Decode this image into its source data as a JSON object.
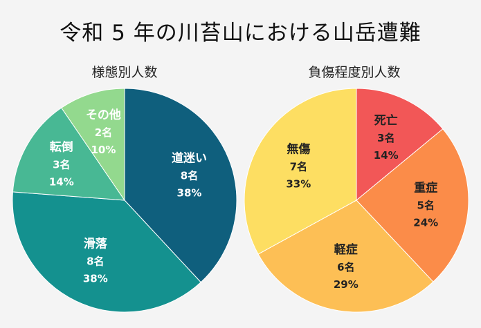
{
  "title": "令和 5 年の川苔山における山岳遭難",
  "chart_data": [
    {
      "type": "pie",
      "title": "様態別人数",
      "start_angle_deg": 0,
      "direction": "clockwise",
      "slices": [
        {
          "label": "道迷い",
          "count": "8名",
          "pct": "38%",
          "value": 8,
          "color": "#0f5f7d",
          "text_color": "#ffffff"
        },
        {
          "label": "滑落",
          "count": "8名",
          "pct": "38%",
          "value": 8,
          "color": "#14918f",
          "text_color": "#ffffff"
        },
        {
          "label": "転倒",
          "count": "3名",
          "pct": "14%",
          "value": 3,
          "color": "#48b894",
          "text_color": "#ffffff"
        },
        {
          "label": "その他",
          "count": "2名",
          "pct": "10%",
          "value": 2,
          "color": "#93d98e",
          "text_color": "#ffffff"
        }
      ]
    },
    {
      "type": "pie",
      "title": "負傷程度別人数",
      "start_angle_deg": 0,
      "direction": "clockwise",
      "slices": [
        {
          "label": "死亡",
          "count": "3名",
          "pct": "14%",
          "value": 14,
          "color": "#f25757",
          "text_color": "#222222"
        },
        {
          "label": "重症",
          "count": "5名",
          "pct": "24%",
          "value": 24,
          "color": "#fb8c49",
          "text_color": "#222222"
        },
        {
          "label": "軽症",
          "count": "6名",
          "pct": "29%",
          "value": 29,
          "color": "#fdbf55",
          "text_color": "#222222"
        },
        {
          "label": "無傷",
          "count": "7名",
          "pct": "33%",
          "value": 33,
          "color": "#fdde62",
          "text_color": "#222222"
        }
      ]
    }
  ]
}
